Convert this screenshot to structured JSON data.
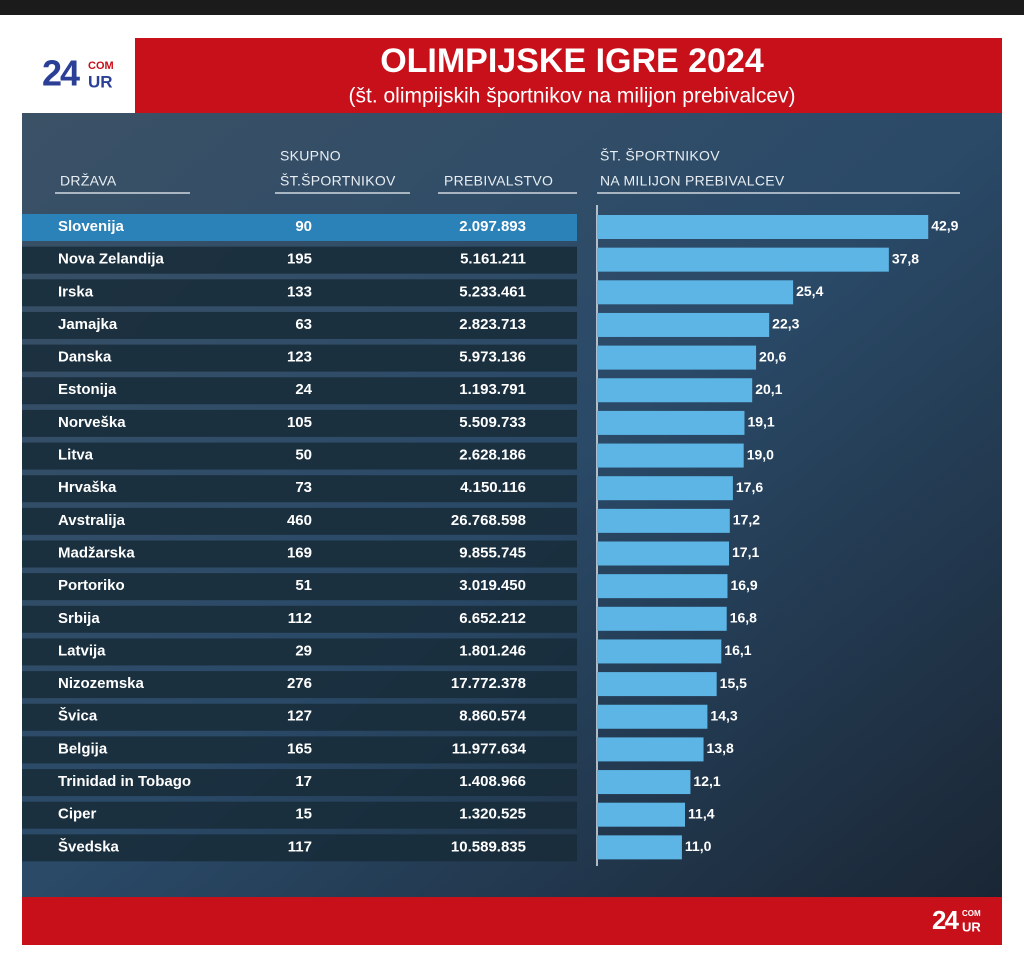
{
  "header": {
    "title": "OLIMPIJSKE IGRE 2024",
    "subtitle": "(št. olimpijskih športnikov na milijon prebivalcev)"
  },
  "logo": {
    "number": "24",
    "top": "COM",
    "bottom": "UR"
  },
  "table": {
    "columns": [
      [
        "DRŽAVA"
      ],
      [
        "SKUPNO",
        "ŠT.ŠPORTNIKOV"
      ],
      [
        "PREBIVALSTVO"
      ]
    ],
    "rows": [
      [
        90,
        "2.097.893"
      ],
      [
        195,
        "5.161.211"
      ],
      [
        133,
        "5.233.461"
      ],
      [
        63,
        "2.823.713"
      ],
      [
        123,
        "5.973.136"
      ],
      [
        24,
        "1.193.791"
      ],
      [
        105,
        "5.509.733"
      ],
      [
        50,
        "2.628.186"
      ],
      [
        73,
        "4.150.116"
      ],
      [
        460,
        "26.768.598"
      ],
      [
        169,
        "9.855.745"
      ],
      [
        51,
        "3.019.450"
      ],
      [
        112,
        "6.652.212"
      ],
      [
        29,
        "1.801.246"
      ],
      [
        276,
        "17.772.378"
      ],
      [
        127,
        "8.860.574"
      ],
      [
        165,
        "11.977.634"
      ],
      [
        17,
        "1.408.966"
      ],
      [
        15,
        "1.320.525"
      ],
      [
        117,
        "10.589.835"
      ]
    ]
  },
  "chart_data": {
    "type": "bar",
    "orientation": "horizontal",
    "title": [
      "ŠT. ŠPORTNIKOV",
      "NA MILIJON PREBIVALCEV"
    ],
    "categories": [
      "Slovenija",
      "Nova Zelandija",
      "Irska",
      "Jamajka",
      "Danska",
      "Estonija",
      "Norveška",
      "Litva",
      "Hrvaška",
      "Avstralija",
      "Madžarska",
      "Portoriko",
      "Srbija",
      "Latvija",
      "Nizozemska",
      "Švica",
      "Belgija",
      "Trinidad in Tobago",
      "Ciper",
      "Švedska"
    ],
    "values": [
      42.9,
      37.8,
      25.4,
      22.3,
      20.6,
      20.1,
      19.1,
      19.0,
      17.6,
      17.2,
      17.1,
      16.9,
      16.8,
      16.1,
      15.5,
      14.3,
      13.8,
      12.1,
      11.4,
      11.0
    ],
    "value_labels": [
      "42,9",
      "37,8",
      "25,4",
      "22,3",
      "20,6",
      "20,1",
      "19,1",
      "19,0",
      "17,6",
      "17,2",
      "17,1",
      "16,9",
      "16,8",
      "16,1",
      "15,5",
      "14,3",
      "13,8",
      "12,1",
      "11,4",
      "11,0"
    ],
    "color": "#5db5e6",
    "xlim": [
      0,
      43
    ]
  }
}
